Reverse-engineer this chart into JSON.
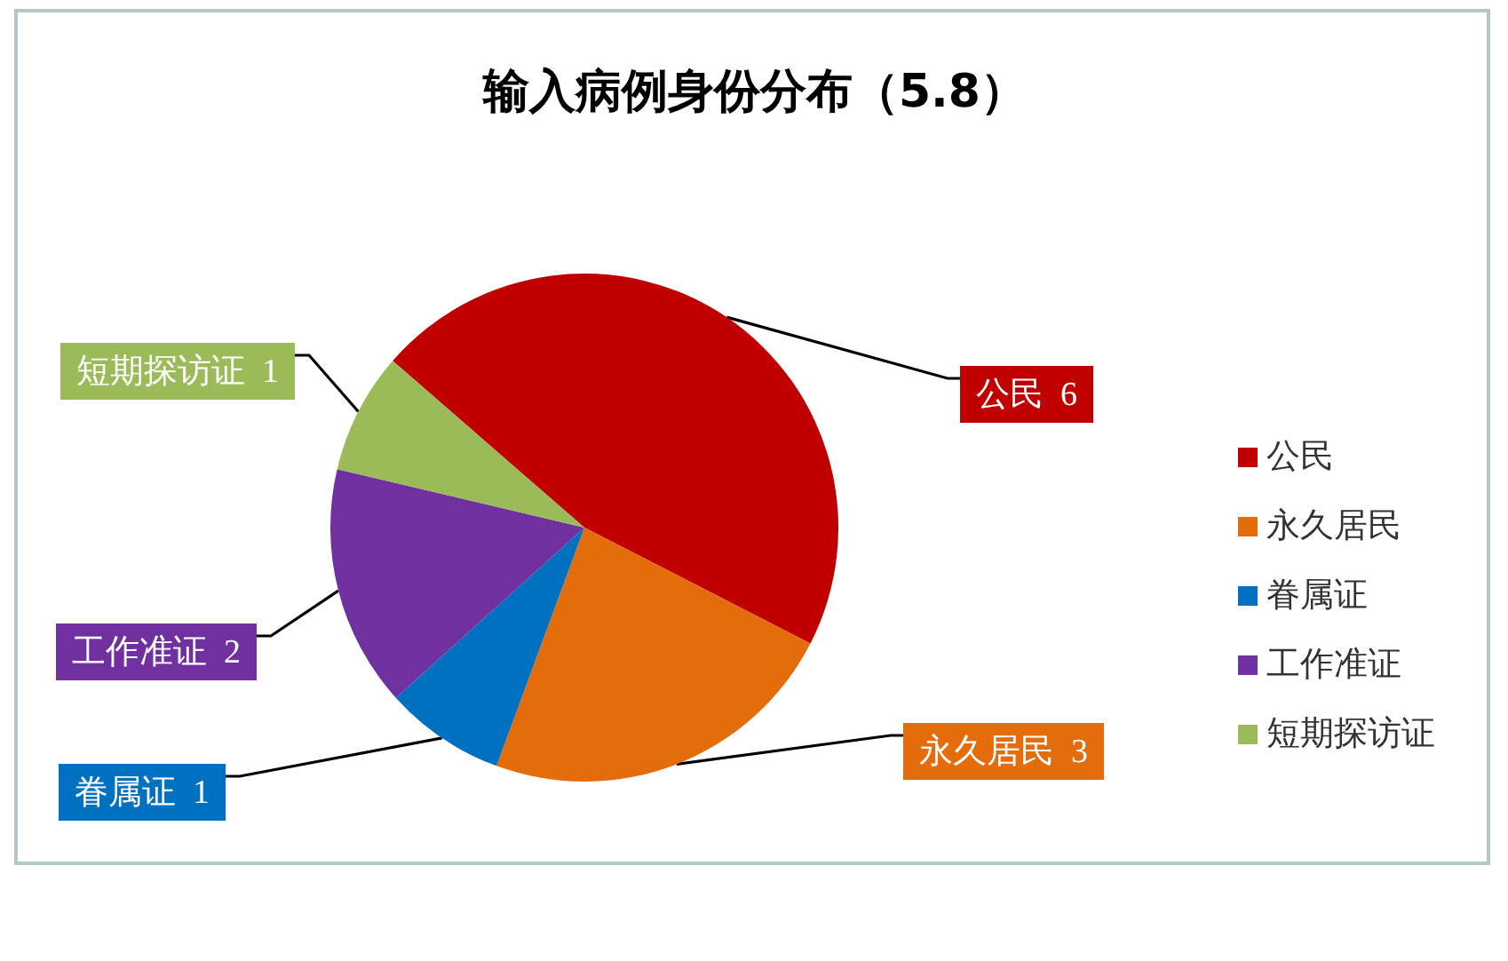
{
  "chart_data": {
    "type": "pie",
    "title": "输入病例身份分布（5.8）",
    "categories": [
      "公民",
      "永久居民",
      "眷属证",
      "工作准证",
      "短期探访证"
    ],
    "values": [
      6,
      3,
      1,
      2,
      1
    ],
    "colors": [
      "#c00000",
      "#e46c0a",
      "#0070c0",
      "#7030a0",
      "#9bbb59"
    ],
    "data_labels": true,
    "legend": "right"
  }
}
